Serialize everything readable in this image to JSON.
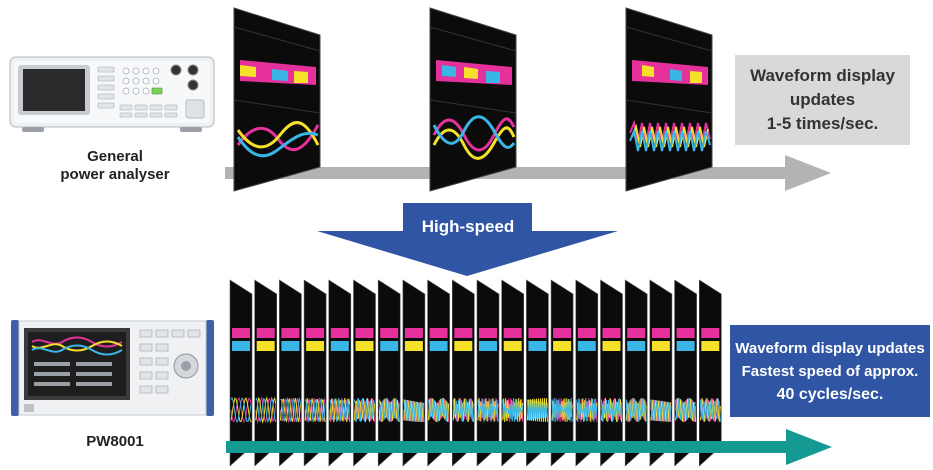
{
  "devices": {
    "general": {
      "label_line1": "General",
      "label_line2": "power analyser"
    },
    "pw8001": {
      "label": "PW8001"
    }
  },
  "transition": {
    "label": "High-speed"
  },
  "top_info": {
    "line1": "Waveform display",
    "line2": "updates",
    "line3": "1-5 times/sec."
  },
  "bottom_info": {
    "line1": "Waveform display updates",
    "line2": "Fastest speed of approx.",
    "line3": "40 cycles/sec."
  },
  "colors": {
    "gray_arrow": "#b3b3b3",
    "teal_arrow": "#159a93",
    "blue_arrow": "#2f55a4",
    "info_gray_bg": "#d9d9d9",
    "info_blue_bg": "#2f55a4",
    "wave_magenta": "#e6319d",
    "wave_yellow": "#f5e12a",
    "wave_cyan": "#3ab6e6",
    "screen_bg": "#0b0b0b"
  }
}
